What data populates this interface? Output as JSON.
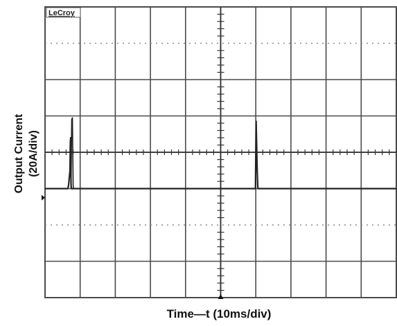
{
  "chart_data": {
    "type": "line",
    "title": "",
    "brand": "LeCroy",
    "xlabel": "Time—t (10ms/div)",
    "ylabel_line1": "Output Current",
    "ylabel_line2": "(20A/div)",
    "x_unit": "ms",
    "y_unit": "A",
    "xlim": [
      0,
      100
    ],
    "ylim": [
      -60,
      100
    ],
    "x_divisions": 10,
    "y_divisions": 8,
    "grid": true,
    "series": [
      {
        "x": [
          0,
          6.5,
          6.7,
          7.1,
          7.2,
          7.3,
          7.4,
          7.5,
          7.7,
          25,
          50,
          59.9,
          60.1,
          60.4,
          60.6,
          60.8,
          61.2,
          80,
          100
        ],
        "y": [
          0,
          0,
          2,
          10,
          25,
          28,
          3,
          0,
          0,
          0,
          0,
          0,
          37,
          10,
          0,
          0,
          0,
          0,
          0
        ]
      },
      {
        "x": [
          7.4,
          7.6,
          7.8,
          8.0,
          8.1
        ],
        "y": [
          0,
          38,
          39,
          2,
          0
        ]
      }
    ]
  },
  "colors": {
    "grid": "#4a4a4a",
    "dots": "#8a8a8a",
    "trace": "#222222",
    "background": "#ffffff"
  }
}
